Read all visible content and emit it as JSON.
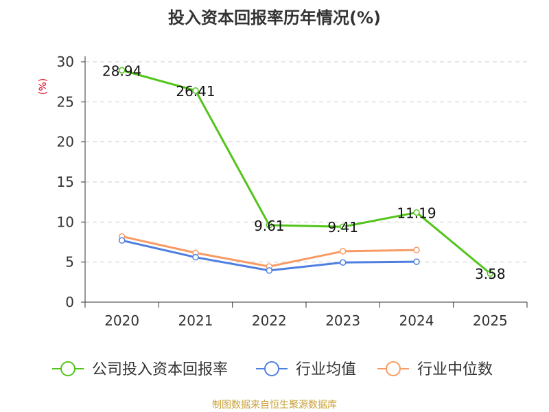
{
  "chart_data": {
    "type": "line",
    "title": "投入资本回报率历年情况(%)",
    "ylabel": "(%)",
    "xlabel": "",
    "categories": [
      "2020",
      "2021",
      "2022",
      "2023",
      "2024",
      "2025"
    ],
    "ylim": [
      0,
      30
    ],
    "yticks": [
      0,
      5,
      10,
      15,
      20,
      25,
      30
    ],
    "grid": true,
    "legend_position": "bottom",
    "series": [
      {
        "name": "公司投入资本回报率",
        "color": "#52c41a",
        "values": [
          28.94,
          26.41,
          9.61,
          9.41,
          11.19,
          3.58
        ],
        "labels": [
          "28.94",
          "26.41",
          "9.61",
          "9.41",
          "11.19",
          "3.58"
        ]
      },
      {
        "name": "行业均值",
        "color": "#4e7fe0",
        "values": [
          7.7,
          5.6,
          3.95,
          4.95,
          5.05,
          null
        ]
      },
      {
        "name": "行业中位数",
        "color": "#f79a63",
        "values": [
          8.2,
          6.15,
          4.45,
          6.35,
          6.5,
          null
        ]
      }
    ]
  },
  "source": "制图数据来自恒生聚源数据库"
}
